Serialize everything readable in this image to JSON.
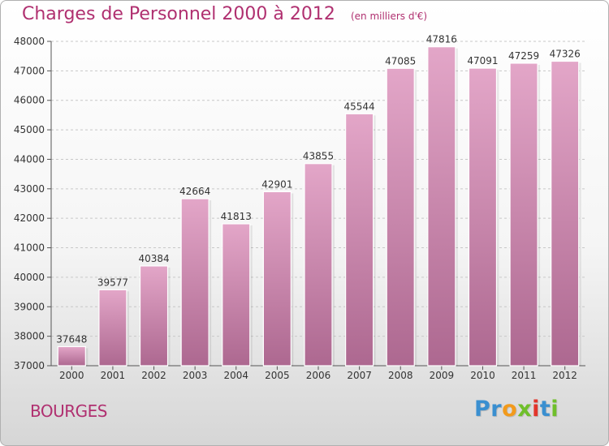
{
  "chart_data": {
    "type": "bar",
    "title": "Charges de Personnel 2000 à 2012",
    "subtitle": "(en milliers d'€)",
    "categories": [
      "2000",
      "2001",
      "2002",
      "2003",
      "2004",
      "2005",
      "2006",
      "2007",
      "2008",
      "2009",
      "2010",
      "2011",
      "2012"
    ],
    "values": [
      37648,
      39577,
      40384,
      42664,
      41813,
      42901,
      43855,
      45544,
      47085,
      47816,
      47091,
      47259,
      47326
    ],
    "ylim": [
      37000,
      48000
    ],
    "yticks": [
      37000,
      38000,
      39000,
      40000,
      41000,
      42000,
      43000,
      44000,
      45000,
      46000,
      47000,
      48000
    ],
    "xlabel": "",
    "ylabel": "",
    "grid": true,
    "data_labels": true,
    "bar_color": "#c0719e"
  },
  "footer": {
    "city": "BOURGES",
    "brand_letters": [
      {
        "ch": "P",
        "color": "#3a8fd0"
      },
      {
        "ch": "r",
        "color": "#3a8fd0"
      },
      {
        "ch": "o",
        "color": "#f29a1b"
      },
      {
        "ch": "x",
        "color": "#6fbf2a"
      },
      {
        "ch": "i",
        "color": "#e2352b"
      },
      {
        "ch": "t",
        "color": "#3a8fd0"
      },
      {
        "ch": "i",
        "color": "#6fbf2a"
      }
    ]
  }
}
